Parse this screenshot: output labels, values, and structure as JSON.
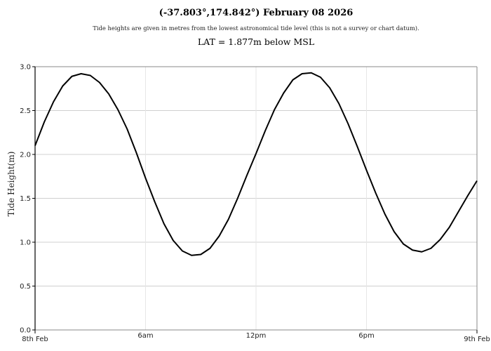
{
  "header": {
    "title": "(-37.803°,174.842°) February 08 2026",
    "subtitle": "Tide heights are given in metres from the lowest astronomical tide level (this is not a survey or chart datum).",
    "lat_note": "LAT = 1.877m below MSL"
  },
  "colors": {
    "line": "#000000",
    "grid": "#d0d0d0",
    "vgrid": "#e6e6e6",
    "axis": "#000000",
    "border": "#888888"
  },
  "chart_data": {
    "type": "line",
    "title": "(-37.803°,174.842°) February 08 2026",
    "subtitle": "Tide heights are given in metres from the lowest astronomical tide level (this is not a survey or chart datum).",
    "annotation": "LAT = 1.877m below MSL",
    "xlabel": "",
    "ylabel": "Tide Height(m)",
    "ylim": [
      0.0,
      3.0
    ],
    "xlim_hours": [
      0,
      24
    ],
    "y_ticks": [
      "0.0",
      "0.5",
      "1.0",
      "1.5",
      "2.0",
      "2.5",
      "3.0"
    ],
    "x_ticks": [
      {
        "hour": 0,
        "label": "8th Feb"
      },
      {
        "hour": 6,
        "label": "6am"
      },
      {
        "hour": 12,
        "label": "12pm"
      },
      {
        "hour": 18,
        "label": "6pm"
      },
      {
        "hour": 24,
        "label": "9th Feb"
      }
    ],
    "grid": true,
    "legend": null,
    "extrema": [
      {
        "type": "high",
        "hour": 2.6,
        "height": 2.92
      },
      {
        "type": "low",
        "hour": 8.76,
        "height": 0.85
      },
      {
        "type": "high",
        "hour": 14.9,
        "height": 2.93
      },
      {
        "type": "low",
        "hour": 21.14,
        "height": 0.89
      }
    ],
    "series": [
      {
        "name": "Tide Height",
        "x_hours": [
          0,
          0.5,
          1,
          1.5,
          2,
          2.5,
          3,
          3.5,
          4,
          4.5,
          5,
          5.5,
          6,
          6.5,
          7,
          7.5,
          8,
          8.5,
          9,
          9.5,
          10,
          10.5,
          11,
          11.5,
          12,
          12.5,
          13,
          13.5,
          14,
          14.5,
          15,
          15.5,
          16,
          16.5,
          17,
          17.5,
          18,
          18.5,
          19,
          19.5,
          20,
          20.5,
          21,
          21.5,
          22,
          22.5,
          23,
          23.5,
          24
        ],
        "values": [
          2.1,
          2.37,
          2.6,
          2.78,
          2.89,
          2.92,
          2.9,
          2.82,
          2.69,
          2.51,
          2.29,
          2.02,
          1.73,
          1.46,
          1.21,
          1.02,
          0.9,
          0.85,
          0.86,
          0.93,
          1.07,
          1.26,
          1.5,
          1.76,
          2.01,
          2.27,
          2.51,
          2.7,
          2.85,
          2.92,
          2.93,
          2.88,
          2.76,
          2.58,
          2.35,
          2.09,
          1.82,
          1.56,
          1.32,
          1.12,
          0.98,
          0.91,
          0.89,
          0.93,
          1.03,
          1.17,
          1.35,
          1.53,
          1.7
        ]
      }
    ]
  }
}
